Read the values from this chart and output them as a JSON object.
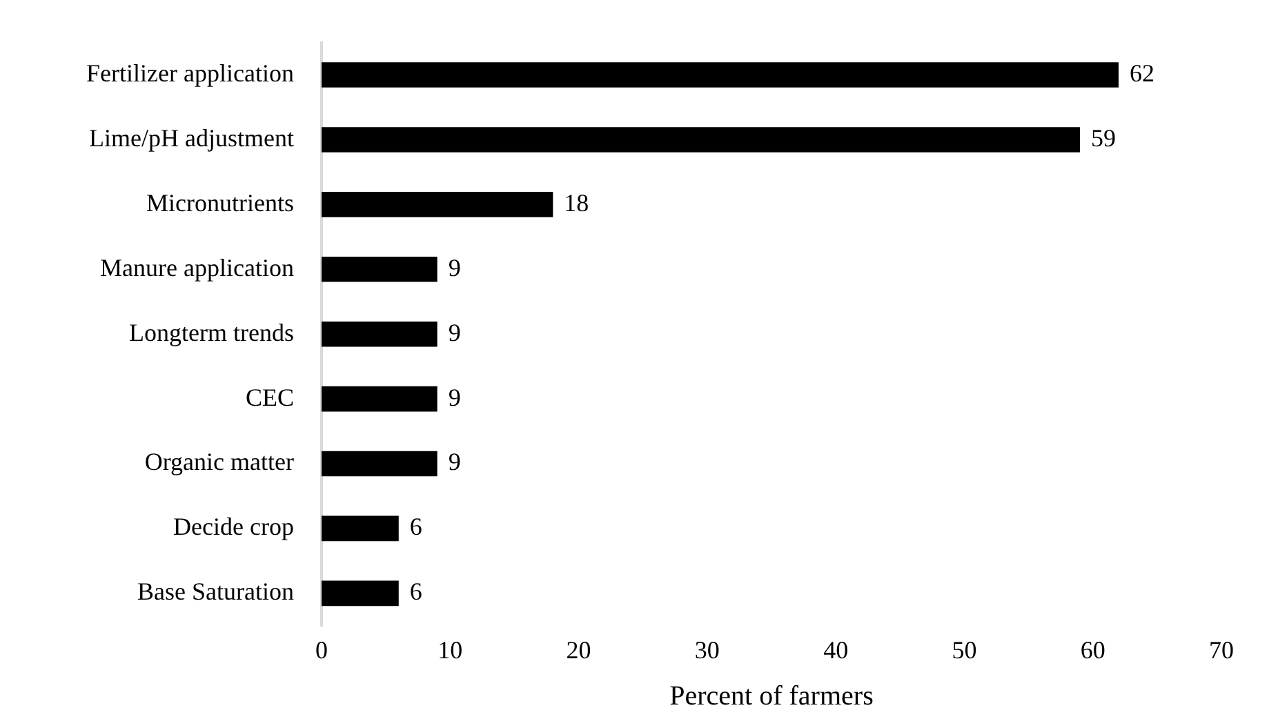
{
  "chart_data": {
    "type": "bar",
    "orientation": "horizontal",
    "xlabel": "Percent of farmers",
    "categories": [
      "Fertilizer application",
      "Lime/pH adjustment",
      "Micronutrients",
      "Manure application",
      "Longterm trends",
      "CEC",
      "Organic matter",
      "Decide crop",
      "Base Saturation"
    ],
    "values": [
      62,
      59,
      18,
      9,
      9,
      9,
      9,
      6,
      6
    ],
    "color": "#000000",
    "xlim": [
      0,
      70
    ],
    "xticks": [
      0,
      10,
      20,
      30,
      40,
      50,
      60,
      70
    ],
    "grid": false,
    "legend": false,
    "data_labels": true
  }
}
